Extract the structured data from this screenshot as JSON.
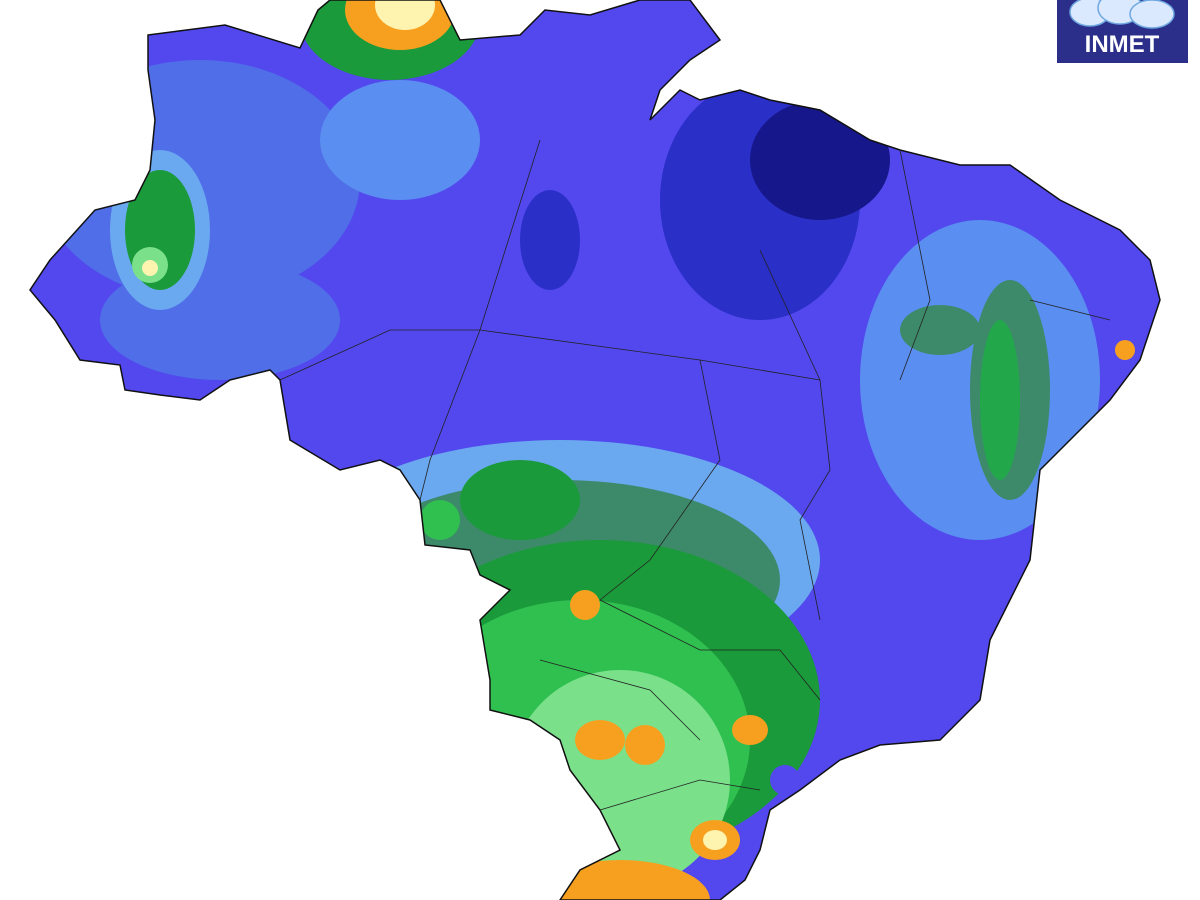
{
  "logo": {
    "text": "INMET"
  }
}
